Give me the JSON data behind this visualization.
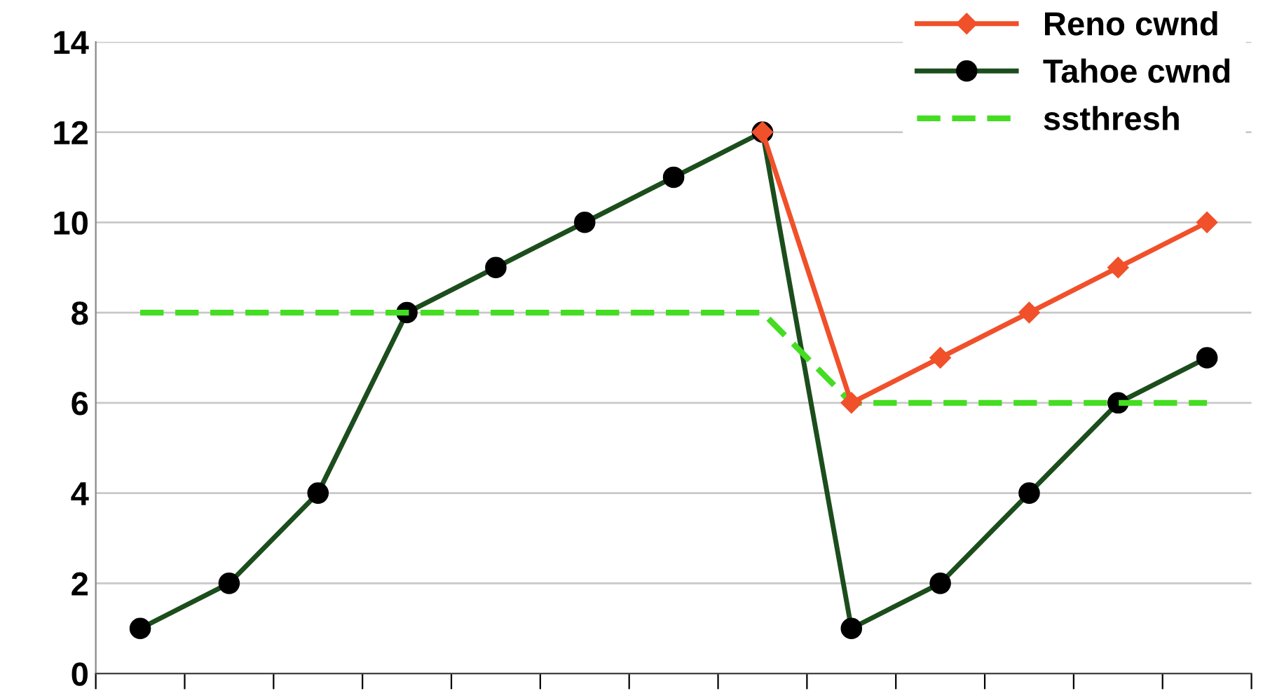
{
  "chart_data": {
    "type": "line",
    "categories": [
      null,
      null,
      null,
      null,
      null,
      null,
      null,
      null,
      null,
      null,
      null,
      null,
      null
    ],
    "series": [
      {
        "name": "Reno cwnd",
        "color": "#f0502a",
        "marker": "diamond",
        "line_style": "solid",
        "values": [
          null,
          null,
          null,
          null,
          null,
          null,
          null,
          12,
          6,
          7,
          8,
          9,
          10
        ]
      },
      {
        "name": "Tahoe cwnd",
        "color": "#1c4d1c",
        "marker": "circle",
        "line_style": "solid",
        "values": [
          1,
          2,
          4,
          8,
          9,
          10,
          11,
          12,
          1,
          2,
          4,
          6,
          7
        ]
      },
      {
        "name": "ssthresh",
        "color": "#44dd22",
        "marker": "none",
        "line_style": "dashed",
        "values": [
          8,
          8,
          8,
          8,
          8,
          8,
          8,
          8,
          6,
          6,
          6,
          6,
          6
        ]
      }
    ],
    "ylim": [
      0,
      14
    ],
    "yticks": [
      0,
      2,
      4,
      6,
      8,
      10,
      12,
      14
    ],
    "grid": "y",
    "legend": "top right"
  }
}
